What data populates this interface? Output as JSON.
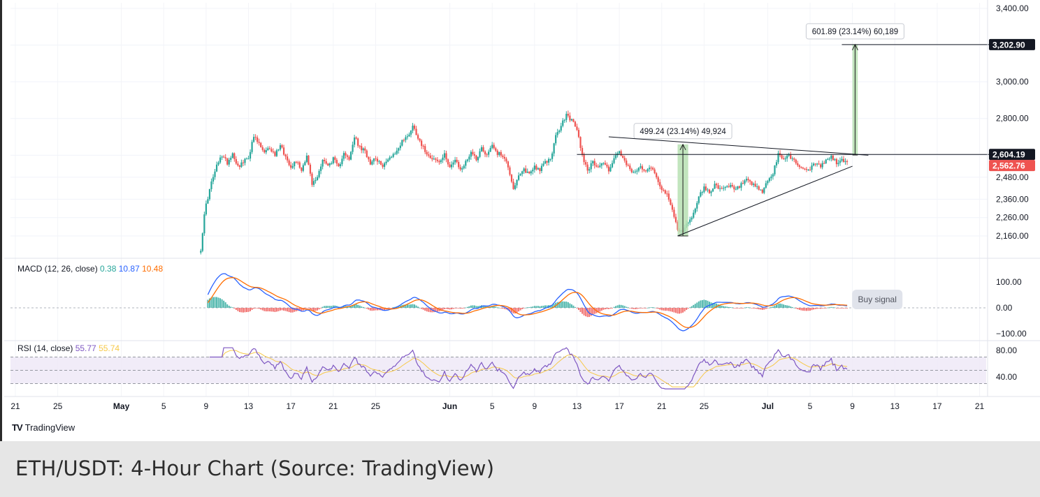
{
  "chart_data": {
    "type": "candlestick",
    "symbol": "ETH/USDT",
    "timeframe": "4-Hour",
    "price_axis": {
      "ticks": [
        "3,400.00",
        "3,000.00",
        "2,800.00",
        "2,480.00",
        "2,360.00",
        "2,260.00",
        "2,160.00"
      ],
      "tick_values": [
        3400,
        3000,
        2800,
        2480,
        2360,
        2260,
        2160
      ],
      "labels": {
        "target": {
          "text": "3,202.90",
          "value": 3202.9
        },
        "resistance": {
          "text": "2,604.19",
          "value": 2604.19
        },
        "last": {
          "text": "2,562.76",
          "value": 2562.76
        }
      }
    },
    "time_axis": {
      "ticks": [
        "21",
        "25",
        "May",
        "5",
        "9",
        "13",
        "17",
        "21",
        "25",
        "Jun",
        "5",
        "9",
        "13",
        "17",
        "21",
        "25",
        "Jul",
        "5",
        "9",
        "13",
        "17",
        "21"
      ],
      "bold": [
        "May",
        "Jun",
        "Jul"
      ]
    },
    "price_path": [
      [
        "May 8 12:00",
        2090
      ],
      [
        "May 8 20:00",
        2270
      ],
      [
        "May 9",
        2330
      ],
      [
        "May 9 12:00",
        2450
      ],
      [
        "May 10",
        2540
      ],
      [
        "May 10 12:00",
        2600
      ],
      [
        "May 11",
        2560
      ],
      [
        "May 11 12:00",
        2610
      ],
      [
        "May 12",
        2540
      ],
      [
        "May 12 12:00",
        2560
      ],
      [
        "May 13",
        2590
      ],
      [
        "May 13 12:00",
        2700
      ],
      [
        "May 14",
        2660
      ],
      [
        "May 14 12:00",
        2610
      ],
      [
        "May 15",
        2640
      ],
      [
        "May 15 12:00",
        2600
      ],
      [
        "May 16",
        2660
      ],
      [
        "May 16 12:00",
        2590
      ],
      [
        "May 17",
        2540
      ],
      [
        "May 17 12:00",
        2570
      ],
      [
        "May 18",
        2520
      ],
      [
        "May 18 12:00",
        2600
      ],
      [
        "May 19",
        2440
      ],
      [
        "May 19 12:00",
        2480
      ],
      [
        "May 20",
        2580
      ],
      [
        "May 20 12:00",
        2540
      ],
      [
        "May 21",
        2580
      ],
      [
        "May 21 12:00",
        2530
      ],
      [
        "May 22",
        2620
      ],
      [
        "May 22 12:00",
        2570
      ],
      [
        "May 23",
        2700
      ],
      [
        "May 23 12:00",
        2640
      ],
      [
        "May 24",
        2620
      ],
      [
        "May 24 12:00",
        2560
      ],
      [
        "May 25",
        2590
      ],
      [
        "May 25 12:00",
        2540
      ],
      [
        "May 26",
        2560
      ],
      [
        "May 26 12:00",
        2600
      ],
      [
        "May 27",
        2620
      ],
      [
        "May 27 12:00",
        2680
      ],
      [
        "May 28",
        2700
      ],
      [
        "May 28 12:00",
        2760
      ],
      [
        "May 29",
        2700
      ],
      [
        "May 29 12:00",
        2640
      ],
      [
        "May 30",
        2600
      ],
      [
        "May 30 12:00",
        2580
      ],
      [
        "May 31",
        2560
      ],
      [
        "May 31 12:00",
        2600
      ],
      [
        "Jun 1",
        2540
      ],
      [
        "Jun 1 12:00",
        2570
      ],
      [
        "Jun 2",
        2520
      ],
      [
        "Jun 2 12:00",
        2560
      ],
      [
        "Jun 3",
        2620
      ],
      [
        "Jun 3 12:00",
        2580
      ],
      [
        "Jun 4",
        2640
      ],
      [
        "Jun 4 12:00",
        2600
      ],
      [
        "Jun 5",
        2660
      ],
      [
        "Jun 5 12:00",
        2610
      ],
      [
        "Jun 6",
        2600
      ],
      [
        "Jun 6 12:00",
        2540
      ],
      [
        "Jun 7",
        2420
      ],
      [
        "Jun 7 12:00",
        2480
      ],
      [
        "Jun 8",
        2520
      ],
      [
        "Jun 8 12:00",
        2500
      ],
      [
        "Jun 9",
        2540
      ],
      [
        "Jun 9 12:00",
        2520
      ],
      [
        "Jun 10",
        2560
      ],
      [
        "Jun 10 12:00",
        2580
      ],
      [
        "Jun 11",
        2700
      ],
      [
        "Jun 11 12:00",
        2760
      ],
      [
        "Jun 12",
        2820
      ],
      [
        "Jun 12 12:00",
        2790
      ],
      [
        "Jun 13",
        2740
      ],
      [
        "Jun 13 12:00",
        2600
      ],
      [
        "Jun 14",
        2520
      ],
      [
        "Jun 14 12:00",
        2560
      ],
      [
        "Jun 15",
        2540
      ],
      [
        "Jun 15 12:00",
        2560
      ],
      [
        "Jun 16",
        2520
      ],
      [
        "Jun 16 12:00",
        2580
      ],
      [
        "Jun 17",
        2620
      ],
      [
        "Jun 17 12:00",
        2560
      ],
      [
        "Jun 18",
        2520
      ],
      [
        "Jun 18 12:00",
        2500
      ],
      [
        "Jun 19",
        2540
      ],
      [
        "Jun 19 12:00",
        2520
      ],
      [
        "Jun 20",
        2540
      ],
      [
        "Jun 20 12:00",
        2480
      ],
      [
        "Jun 21",
        2420
      ],
      [
        "Jun 21 12:00",
        2380
      ],
      [
        "Jun 22",
        2300
      ],
      [
        "Jun 22 12:00",
        2200
      ],
      [
        "Jun 23",
        2180
      ],
      [
        "Jun 23 12:00",
        2240
      ],
      [
        "Jun 24",
        2280
      ],
      [
        "Jun 24 12:00",
        2380
      ],
      [
        "Jun 25",
        2420
      ],
      [
        "Jun 25 12:00",
        2400
      ],
      [
        "Jun 26",
        2440
      ],
      [
        "Jun 26 12:00",
        2410
      ],
      [
        "Jun 27",
        2420
      ],
      [
        "Jun 27 12:00",
        2430
      ],
      [
        "Jun 28",
        2410
      ],
      [
        "Jun 28 12:00",
        2440
      ],
      [
        "Jun 29",
        2460
      ],
      [
        "Jun 29 12:00",
        2440
      ],
      [
        "Jun 30",
        2420
      ],
      [
        "Jun 30 12:00",
        2400
      ],
      [
        "Jul 1",
        2460
      ],
      [
        "Jul 1 12:00",
        2500
      ],
      [
        "Jul 2",
        2600
      ],
      [
        "Jul 2 12:00",
        2580
      ],
      [
        "Jul 3",
        2600
      ],
      [
        "Jul 3 12:00",
        2570
      ],
      [
        "Jul 4",
        2540
      ],
      [
        "Jul 4 12:00",
        2520
      ],
      [
        "Jul 5",
        2530
      ],
      [
        "Jul 5 12:00",
        2550
      ],
      [
        "Jul 6",
        2540
      ],
      [
        "Jul 6 12:00",
        2570
      ],
      [
        "Jul 7",
        2590
      ],
      [
        "Jul 7 12:00",
        2560
      ],
      [
        "Jul 8",
        2570
      ],
      [
        "Jul 8 12:00",
        2562.76
      ]
    ],
    "annotations": {
      "measure_past": {
        "text": "499.24 (23.14%) 49,924",
        "from": [
          "Jun 22 12:00",
          2160
        ],
        "to": [
          "Jun 23 12:00",
          2659
        ]
      },
      "measure_projection": {
        "text": "601.89 (23.14%) 60,189",
        "from": [
          "Jul 9",
          2601
        ],
        "to": [
          "Jul 9 12:00",
          3202.9
        ]
      },
      "upper_trendline": {
        "from": [
          "Jun 16",
          2700
        ],
        "to": [
          "Jul 10 12:00",
          2600
        ]
      },
      "lower_trendline": {
        "from": [
          "Jun 22 12:00",
          2160
        ],
        "to": [
          "Jul 9",
          2540
        ]
      },
      "resistance_line": {
        "from": [
          "Jun 13",
          2604.19
        ],
        "to": [
          "Jul 22",
          2604.19
        ]
      },
      "target_line": {
        "from": [
          "Jul 8",
          3202.9
        ],
        "to": [
          "Jul 22",
          3202.9
        ]
      },
      "buy_signal": {
        "text": "Buy signal",
        "at": "Jul 9 12:00"
      }
    },
    "indicators": {
      "macd": {
        "label": "MACD (12, 26, close)",
        "values": [
          "0.38",
          "10.87",
          "10.48"
        ],
        "colors": [
          "#26a69a",
          "#2962ff",
          "#ff6d00"
        ],
        "ticks": [
          "100.00",
          "0.00",
          "−100.00"
        ],
        "tick_values": [
          100,
          0,
          -100
        ]
      },
      "rsi": {
        "label": "RSI (14, close)",
        "values": [
          "55.77",
          "55.74"
        ],
        "colors": [
          "#7e57c2",
          "#f7c948"
        ],
        "ticks": [
          "80.00",
          "40.00"
        ],
        "tick_values": [
          80,
          40
        ],
        "band": [
          30,
          70
        ]
      }
    }
  },
  "branding": {
    "logo_mark": "TV",
    "logo_text": "TradingView"
  },
  "caption": "ETH/USDT: 4-Hour Chart (Source: TradingView)",
  "colors": {
    "up": "#26a69a",
    "down": "#ef5350",
    "measure_fill": "#b7e1b3",
    "rsi_line": "#7e57c2",
    "rsi_band": "#ede7f6"
  }
}
